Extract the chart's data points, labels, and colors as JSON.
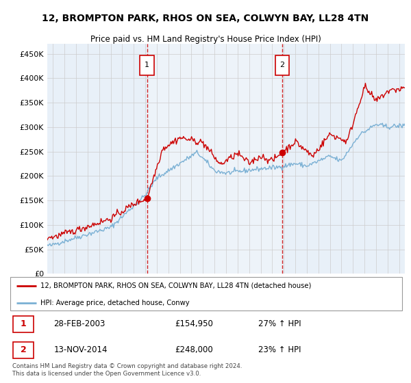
{
  "title": "12, BROMPTON PARK, RHOS ON SEA, COLWYN BAY, LL28 4TN",
  "subtitle": "Price paid vs. HM Land Registry's House Price Index (HPI)",
  "ylabel_ticks": [
    "£0",
    "£50K",
    "£100K",
    "£150K",
    "£200K",
    "£250K",
    "£300K",
    "£350K",
    "£400K",
    "£450K"
  ],
  "ytick_values": [
    0,
    50000,
    100000,
    150000,
    200000,
    250000,
    300000,
    350000,
    400000,
    450000
  ],
  "ylim": [
    0,
    470000
  ],
  "xlim_start": 1994.5,
  "xlim_end": 2025.5,
  "sale1_x": 2003.15,
  "sale1_y": 154950,
  "sale2_x": 2014.87,
  "sale2_y": 248000,
  "red_line_color": "#cc0000",
  "blue_line_color": "#7ab0d4",
  "vline_color": "#cc0000",
  "grid_color": "#cccccc",
  "background_color": "#e8f0f8",
  "highlight_color": "#d8e8f4",
  "legend_text1": "12, BROMPTON PARK, RHOS ON SEA, COLWYN BAY, LL28 4TN (detached house)",
  "legend_text2": "HPI: Average price, detached house, Conwy",
  "annotation1_label": "1",
  "annotation1_date": "28-FEB-2003",
  "annotation1_price": "£154,950",
  "annotation1_hpi": "27% ↑ HPI",
  "annotation2_label": "2",
  "annotation2_date": "13-NOV-2014",
  "annotation2_price": "£248,000",
  "annotation2_hpi": "23% ↑ HPI",
  "footer": "Contains HM Land Registry data © Crown copyright and database right 2024.\nThis data is licensed under the Open Government Licence v3.0."
}
